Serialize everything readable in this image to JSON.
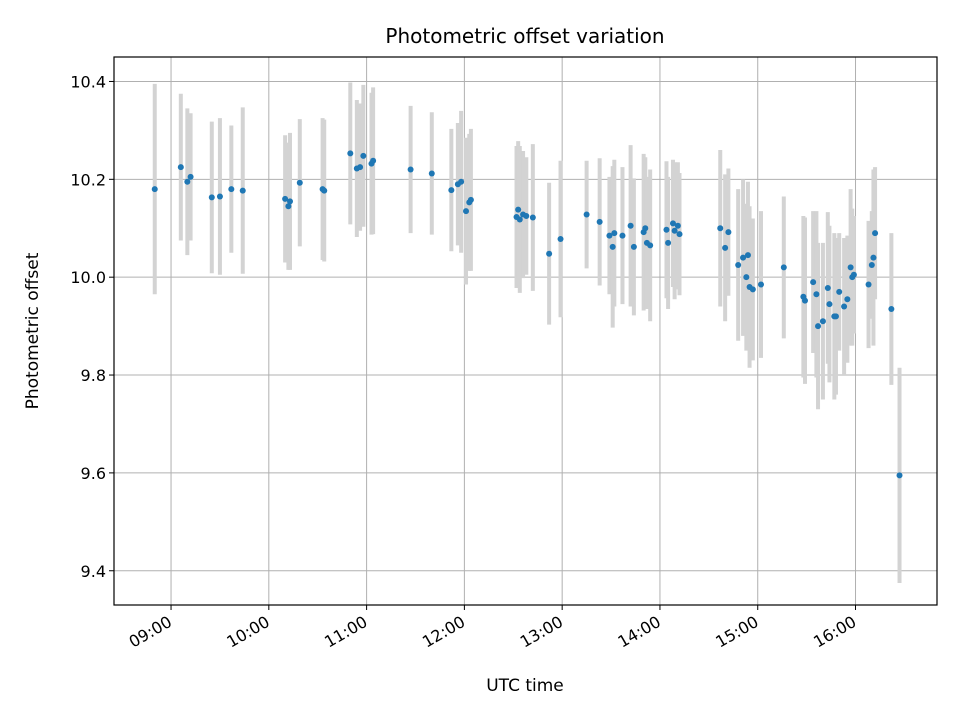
{
  "chart_data": {
    "type": "scatter",
    "title": "Photometric offset variation",
    "xlabel": "UTC time",
    "ylabel": "Photometric offset",
    "x_tick_labels": [
      "09:00",
      "10:00",
      "11:00",
      "12:00",
      "13:00",
      "14:00",
      "15:00",
      "16:00"
    ],
    "y_tick_labels": [
      "9.4",
      "9.6",
      "9.8",
      "10.0",
      "10.2",
      "10.4"
    ],
    "ylim": [
      9.33,
      10.45
    ],
    "grid": true,
    "colors": {
      "point": "#1f77b4",
      "errorbar": "#d3d3d3",
      "grid": "#b0b0b0"
    },
    "series": [
      {
        "x": [
          "08:50",
          "09:06",
          "09:10",
          "09:12",
          "09:25",
          "09:30",
          "09:37",
          "09:44",
          "10:10",
          "10:12",
          "10:13",
          "10:19",
          "10:33",
          "10:34",
          "10:50",
          "10:54",
          "10:56",
          "10:58",
          "11:03",
          "11:04",
          "11:27",
          "11:40",
          "11:52",
          "11:56",
          "11:58",
          "12:01",
          "12:03",
          "12:04",
          "12:32",
          "12:33",
          "12:34",
          "12:36",
          "12:38",
          "12:42",
          "12:52",
          "12:59",
          "13:15",
          "13:23",
          "13:29",
          "13:31",
          "13:32",
          "13:37",
          "13:42",
          "13:44",
          "13:50",
          "13:51",
          "13:52",
          "13:54",
          "14:04",
          "14:05",
          "14:08",
          "14:09",
          "14:11",
          "14:12",
          "14:37",
          "14:40",
          "14:42",
          "14:48",
          "14:51",
          "14:53",
          "14:54",
          "14:55",
          "14:57",
          "15:02",
          "15:16",
          "15:28",
          "15:29",
          "15:34",
          "15:36",
          "15:37",
          "15:40",
          "15:43",
          "15:44",
          "15:47",
          "15:48",
          "15:50",
          "15:53",
          "15:55",
          "15:57",
          "15:58",
          "15:59",
          "16:08",
          "16:10",
          "16:11",
          "16:12",
          "16:22",
          "16:27"
        ],
        "y": [
          10.18,
          10.225,
          10.195,
          10.205,
          10.163,
          10.165,
          10.18,
          10.177,
          10.16,
          10.145,
          10.155,
          10.193,
          10.18,
          10.177,
          10.253,
          10.222,
          10.225,
          10.248,
          10.232,
          10.238,
          10.22,
          10.212,
          10.178,
          10.19,
          10.195,
          10.135,
          10.153,
          10.158,
          10.123,
          10.138,
          10.118,
          10.128,
          10.125,
          10.122,
          10.048,
          10.078,
          10.128,
          10.113,
          10.085,
          10.062,
          10.09,
          10.085,
          10.105,
          10.062,
          10.092,
          10.1,
          10.07,
          10.065,
          10.097,
          10.07,
          10.11,
          10.095,
          10.105,
          10.088,
          10.1,
          10.06,
          10.092,
          10.025,
          10.04,
          10.0,
          10.045,
          9.98,
          9.975,
          9.985,
          10.02,
          9.96,
          9.952,
          9.99,
          9.965,
          9.9,
          9.91,
          9.978,
          9.945,
          9.92,
          9.92,
          9.97,
          9.94,
          9.955,
          10.02,
          10.0,
          10.005,
          9.985,
          10.025,
          10.04,
          10.09,
          9.935,
          9.595
        ],
        "yerr": [
          0.215,
          0.15,
          0.15,
          0.13,
          0.155,
          0.16,
          0.13,
          0.17,
          0.13,
          0.13,
          0.14,
          0.13,
          0.145,
          0.145,
          0.145,
          0.14,
          0.13,
          0.145,
          0.145,
          0.15,
          0.13,
          0.125,
          0.125,
          0.125,
          0.145,
          0.15,
          0.14,
          0.145,
          0.145,
          0.14,
          0.15,
          0.13,
          0.12,
          0.15,
          0.145,
          0.16,
          0.11,
          0.13,
          0.12,
          0.165,
          0.15,
          0.14,
          0.165,
          0.14,
          0.16,
          0.145,
          0.135,
          0.155,
          0.14,
          0.135,
          0.13,
          0.14,
          0.13,
          0.125,
          0.16,
          0.15,
          0.13,
          0.155,
          0.16,
          0.15,
          0.15,
          0.165,
          0.145,
          0.15,
          0.145,
          0.165,
          0.17,
          0.145,
          0.17,
          0.17,
          0.16,
          0.155,
          0.16,
          0.17,
          0.16,
          0.12,
          0.14,
          0.13,
          0.16,
          0.14,
          0.12,
          0.13,
          0.11,
          0.18,
          0.135,
          0.155,
          0.22
        ]
      }
    ]
  }
}
